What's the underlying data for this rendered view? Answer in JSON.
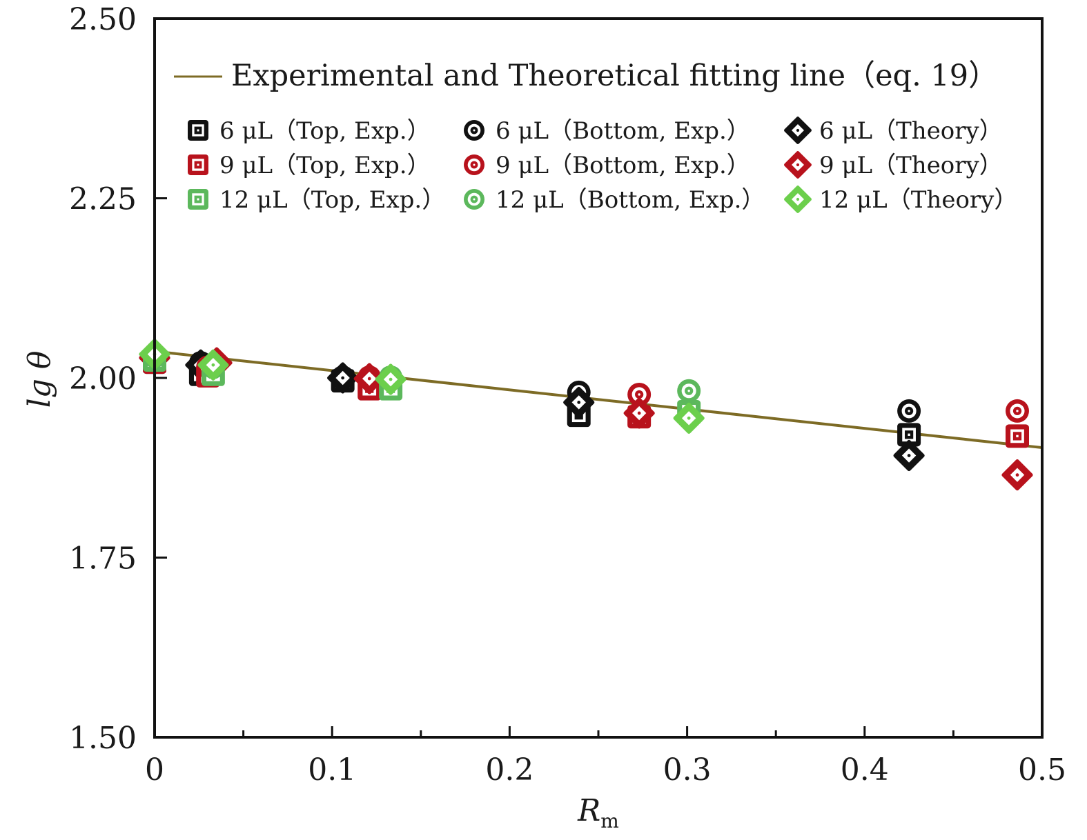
{
  "chart_data": {
    "type": "scatter",
    "title": "",
    "xlabel": "R",
    "xlabel_subscript": "m",
    "ylabel": "lg θ",
    "xlim": [
      0,
      0.5
    ],
    "ylim": [
      1.5,
      2.5
    ],
    "grid": false,
    "x_ticks": [
      {
        "value": 0,
        "label": "0"
      },
      {
        "value": 0.1,
        "label": "0.1"
      },
      {
        "value": 0.2,
        "label": "0.2"
      },
      {
        "value": 0.3,
        "label": "0.3"
      },
      {
        "value": 0.4,
        "label": "0.4"
      },
      {
        "value": 0.5,
        "label": "0.5"
      }
    ],
    "x_minor_ticks": [
      0.05,
      0.15,
      0.25,
      0.35,
      0.45
    ],
    "y_ticks": [
      {
        "value": 1.5,
        "label": "1.50"
      },
      {
        "value": 1.75,
        "label": "1.75"
      },
      {
        "value": 2.0,
        "label": "2.00"
      },
      {
        "value": 2.25,
        "label": "2.25"
      },
      {
        "value": 2.5,
        "label": "2.50"
      }
    ],
    "legend_position": "top",
    "fit_line": {
      "name": "Experimental and Theoretical fitting line（eq. 19）",
      "color": "#7d6b25",
      "x": [
        0,
        0.5
      ],
      "y": [
        2.037,
        1.903
      ]
    },
    "series": [
      {
        "name": "6 μL（Top, Exp.）",
        "marker": "square",
        "color": "#111111",
        "x": [
          0,
          0.026,
          0.106,
          0.239,
          0.425
        ],
        "y": [
          2.022,
          2.005,
          1.996,
          1.948,
          1.921
        ]
      },
      {
        "name": "6 μL（Bottom, Exp.）",
        "marker": "circle",
        "color": "#111111",
        "x": [
          0,
          0.026,
          0.106,
          0.239,
          0.425
        ],
        "y": [
          2.026,
          2.021,
          2.001,
          1.98,
          1.954
        ]
      },
      {
        "name": "6 μL（Theory）",
        "marker": "diamond",
        "color": "#111111",
        "x": [
          0,
          0.026,
          0.106,
          0.239,
          0.425
        ],
        "y": [
          2.028,
          2.018,
          2.0,
          1.966,
          1.892
        ]
      },
      {
        "name": "9 μL（Top, Exp.）",
        "marker": "square",
        "color": "#b8121c",
        "x": [
          0,
          0.03,
          0.121,
          0.273,
          0.486
        ],
        "y": [
          2.022,
          2.003,
          1.985,
          1.946,
          1.919
        ]
      },
      {
        "name": "9 μL（Bottom, Exp.）",
        "marker": "circle",
        "color": "#b8121c",
        "x": [
          0,
          0.03,
          0.121,
          0.273,
          0.486
        ],
        "y": [
          2.026,
          2.015,
          2.001,
          1.977,
          1.954
        ]
      },
      {
        "name": "9 μL（Theory）",
        "marker": "diamond",
        "color": "#b8121c",
        "x": [
          0,
          0.035,
          0.121,
          0.273,
          0.486
        ],
        "y": [
          2.028,
          2.021,
          1.999,
          1.951,
          1.865
        ]
      },
      {
        "name": "12 μL（Top, Exp.）",
        "marker": "square",
        "color": "#5cb85c",
        "x": [
          0,
          0.033,
          0.133,
          0.301
        ],
        "y": [
          2.025,
          2.005,
          1.985,
          1.953
        ]
      },
      {
        "name": "12 μL（Bottom, Exp.）",
        "marker": "circle",
        "color": "#5cb85c",
        "x": [
          0,
          0.033,
          0.133,
          0.301
        ],
        "y": [
          2.03,
          2.015,
          2.001,
          1.982
        ]
      },
      {
        "name": "12 μL（Theory）",
        "marker": "diamond",
        "color": "#6ccf4c",
        "x": [
          0,
          0.033,
          0.133,
          0.301
        ],
        "y": [
          2.033,
          2.018,
          1.998,
          1.944
        ]
      }
    ]
  }
}
